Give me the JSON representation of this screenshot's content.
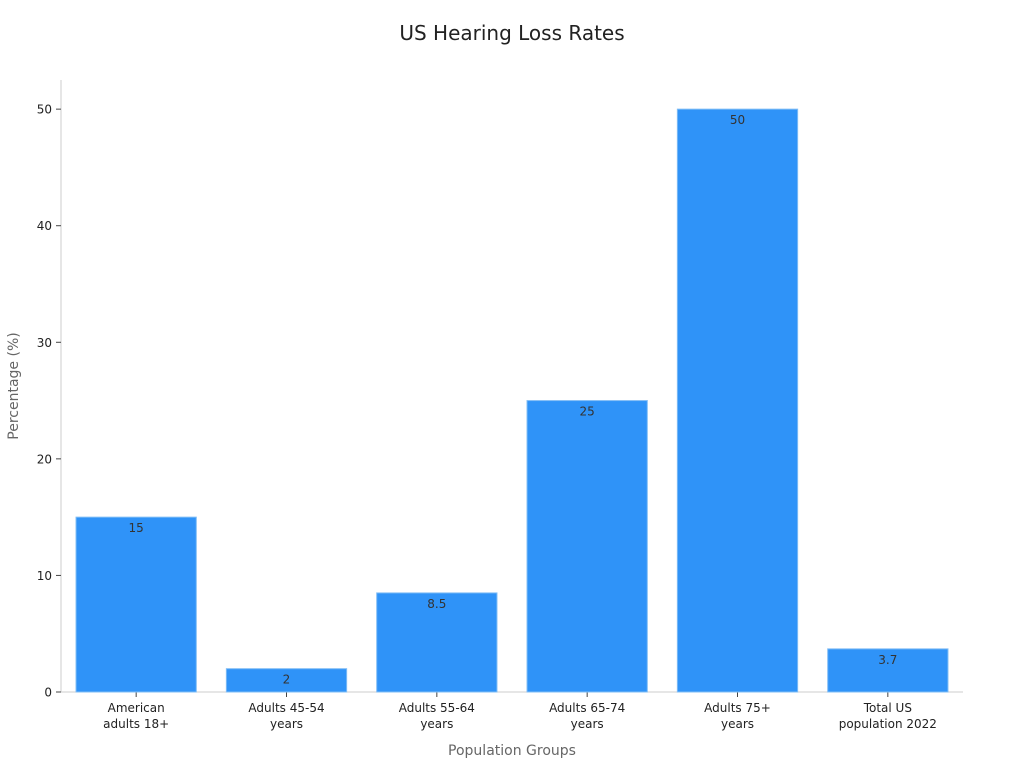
{
  "chart_data": {
    "type": "bar",
    "title": "US Hearing Loss Rates",
    "xlabel": "Population Groups",
    "ylabel": "Percentage (%)",
    "categories": [
      [
        "American",
        "adults 18+"
      ],
      [
        "Adults 45-54",
        "years"
      ],
      [
        "Adults 55-64",
        "years"
      ],
      [
        "Adults 65-74",
        "years"
      ],
      [
        "Adults 75+",
        "years"
      ],
      [
        "Total US",
        "population 2022"
      ]
    ],
    "values": [
      15,
      2,
      8.5,
      25,
      50,
      3.7
    ],
    "data_labels": [
      "15",
      "2",
      "8.5",
      "25",
      "50",
      "3.7"
    ],
    "ylim": [
      0,
      52.5
    ],
    "yticks": [
      0,
      10,
      20,
      30,
      40,
      50
    ],
    "grid": false,
    "legend": "none",
    "colors": {
      "bar": "#2f93f8",
      "bar_edge": "#7fbcf5",
      "axis": "#cccccc",
      "tick_text": "#222222",
      "label_text": "#666666",
      "title_text": "#222222",
      "data_label_text": "#333333"
    }
  }
}
